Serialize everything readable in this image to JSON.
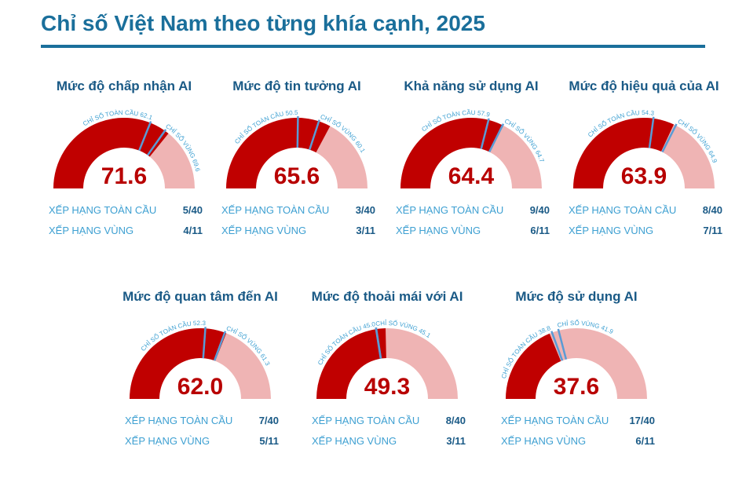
{
  "title": "Chỉ số Việt Nam theo từng khía cạnh, 2025",
  "colors": {
    "title": "#1a6f9b",
    "vietnam": "#c00000",
    "regional": "#efb4b4",
    "marker": "#5a9bd5",
    "label": "#3ea0d2",
    "heading": "#1a5a86"
  },
  "labels": {
    "global_index": "CHỈ SỐ TOÀN CẦU",
    "regional_index": "CHỈ SỐ VÙNG",
    "global_rank": "XẾP HẠNG TOÀN CẦU",
    "regional_rank": "XẾP HẠNG VÙNG"
  },
  "chart_data": [
    {
      "type": "gauge",
      "title": "Mức độ chấp nhận AI",
      "value": 71.6,
      "global_index": 62.1,
      "regional_index": 69.6,
      "global_rank": "5/40",
      "regional_rank": "4/11",
      "range": [
        0,
        100
      ]
    },
    {
      "type": "gauge",
      "title": "Mức độ tin tưởng AI",
      "value": 65.6,
      "global_index": 50.5,
      "regional_index": 60.1,
      "global_rank": "3/40",
      "regional_rank": "3/11",
      "range": [
        0,
        100
      ]
    },
    {
      "type": "gauge",
      "title": "Khả năng sử dụng AI",
      "value": 64.4,
      "global_index": 57.9,
      "regional_index": 64.7,
      "global_rank": "9/40",
      "regional_rank": "6/11",
      "range": [
        0,
        100
      ]
    },
    {
      "type": "gauge",
      "title": "Mức độ hiệu quả của AI",
      "value": 63.9,
      "global_index": 54.3,
      "regional_index": 64.9,
      "global_rank": "8/40",
      "regional_rank": "7/11",
      "range": [
        0,
        100
      ]
    },
    {
      "type": "gauge",
      "title": "Mức độ quan tâm đến AI",
      "value": 62.0,
      "global_index": 52.3,
      "regional_index": 61.3,
      "global_rank": "7/40",
      "regional_rank": "5/11",
      "range": [
        0,
        100
      ]
    },
    {
      "type": "gauge",
      "title": "Mức độ thoải mái với AI",
      "value": 49.3,
      "global_index": 45.0,
      "regional_index": 45.1,
      "global_rank": "8/40",
      "regional_rank": "3/11",
      "range": [
        0,
        100
      ]
    },
    {
      "type": "gauge",
      "title": "Mức độ sử dụng AI",
      "value": 37.6,
      "global_index": 38.8,
      "regional_index": 41.9,
      "global_rank": "17/40",
      "regional_rank": "6/11",
      "range": [
        0,
        100
      ]
    }
  ]
}
